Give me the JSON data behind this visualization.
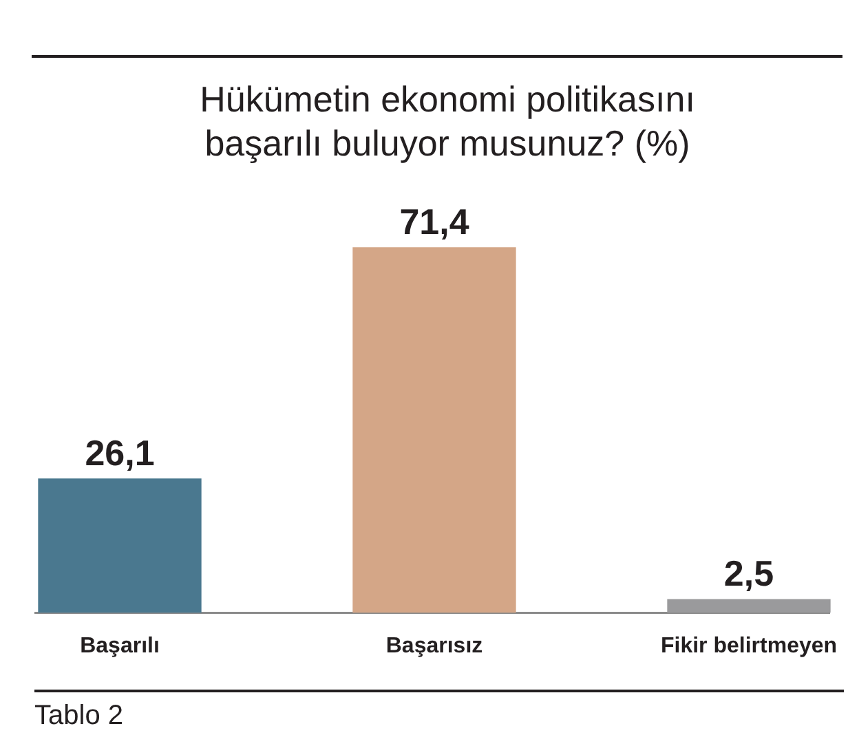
{
  "chart_data": {
    "type": "bar",
    "title": "Hükümetin ekonomi politikasını başarılı buluyor musunuz? (%)",
    "categories": [
      "Başarılı",
      "Başarısız",
      "Fikir belirtmeyen"
    ],
    "values": [
      26.1,
      71.4,
      2.5
    ],
    "colors": [
      "#4a788f",
      "#d4a687",
      "#9a9a9c"
    ],
    "value_labels": [
      "26,1",
      "71,4",
      "2,5"
    ],
    "annotations": [
      "Tablo 2"
    ]
  }
}
